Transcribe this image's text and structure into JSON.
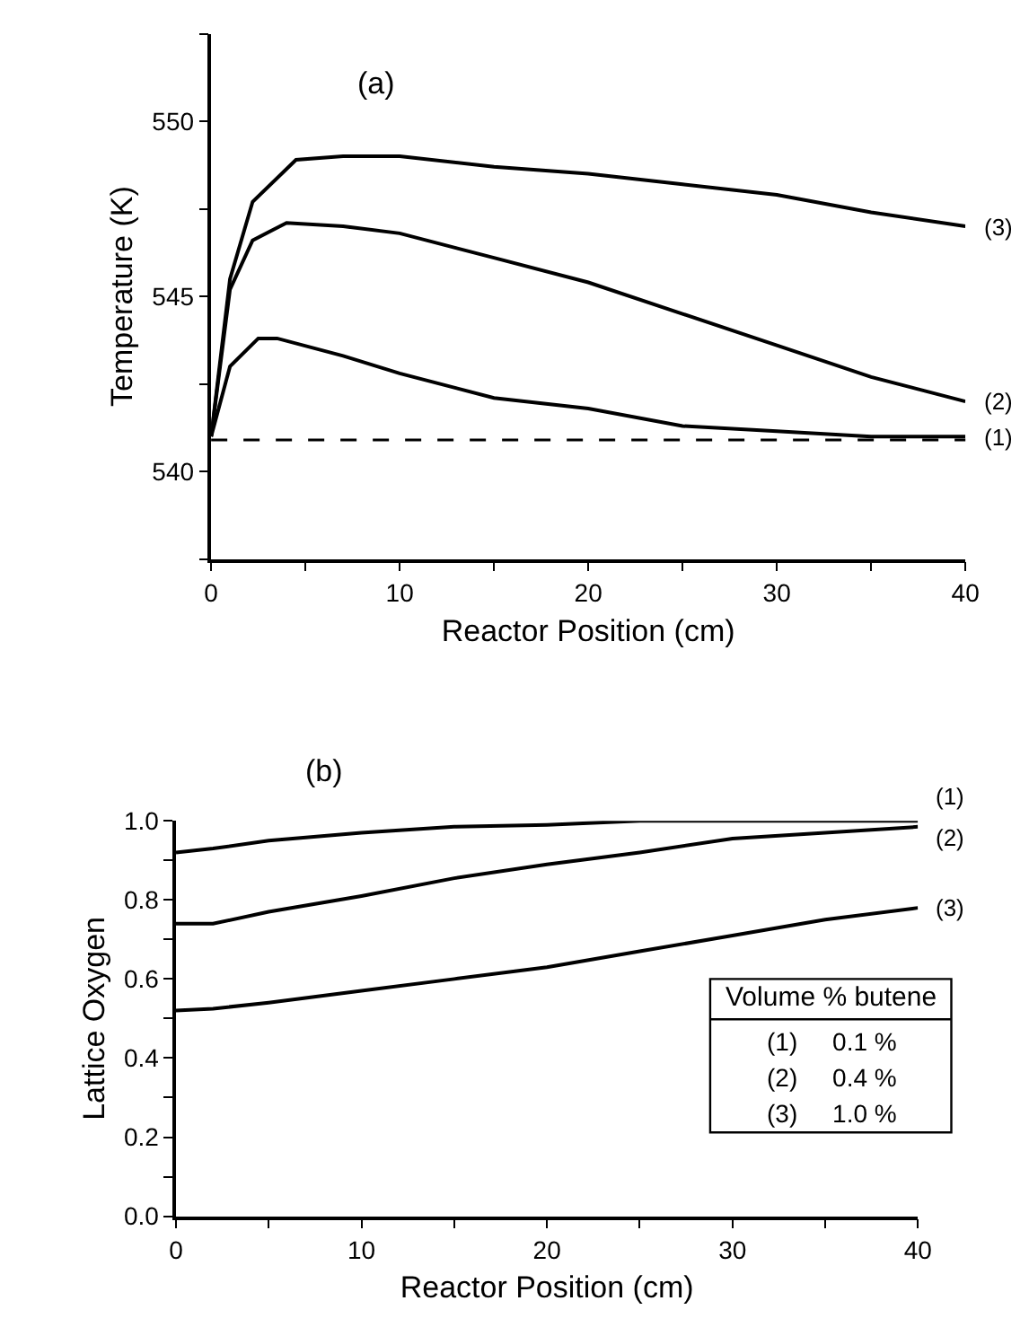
{
  "chart_data": [
    {
      "type": "line",
      "title": "(a)",
      "xlabel": "Reactor Position (cm)",
      "ylabel": "Temperature (K)",
      "xlim": [
        0,
        40
      ],
      "xticks": [
        0,
        {
          "value": 5,
          "label": null
        },
        10,
        {
          "value": 15,
          "label": null
        },
        20,
        {
          "value": 25,
          "label": null
        },
        30,
        {
          "value": 35,
          "label": null
        },
        40
      ],
      "ylim": [
        537.5,
        552.5
      ],
      "yticks": [
        {
          "value": 537.5,
          "label": null
        },
        540,
        {
          "value": 542.5,
          "label": null
        },
        545,
        {
          "value": 547.5,
          "label": null
        },
        550,
        {
          "value": 552.5,
          "label": null
        }
      ],
      "grid": false,
      "legend": false,
      "line_style": "solid",
      "ref_lines": [
        {
          "axis": "y",
          "value": 540.9,
          "color": "#000000",
          "line_style": "dashed"
        }
      ],
      "series": [
        {
          "name": "(1)",
          "color": "#000000",
          "x": [
            0,
            1,
            2.5,
            3.5,
            7,
            10,
            15,
            20,
            25,
            30,
            35,
            40
          ],
          "values": [
            541.0,
            543.0,
            543.8,
            543.8,
            543.3,
            542.8,
            542.1,
            541.8,
            541.3,
            541.15,
            541.0,
            541.0
          ]
        },
        {
          "name": "(2)",
          "color": "#000000",
          "x": [
            0,
            1,
            2.2,
            4,
            7,
            10,
            15,
            20,
            25,
            30,
            35,
            40
          ],
          "values": [
            541.0,
            545.2,
            546.6,
            547.1,
            547.0,
            546.8,
            546.1,
            545.4,
            544.5,
            543.6,
            542.7,
            542.0
          ]
        },
        {
          "name": "(3)",
          "color": "#000000",
          "x": [
            0,
            1,
            2.2,
            4.5,
            7,
            10,
            15,
            20,
            25,
            30,
            35,
            40
          ],
          "values": [
            541.0,
            545.5,
            547.7,
            548.9,
            549.0,
            549.0,
            548.7,
            548.5,
            548.2,
            547.9,
            547.4,
            547.0
          ]
        }
      ]
    },
    {
      "type": "line",
      "title": "(b)",
      "xlabel": "Reactor Position (cm)",
      "ylabel": "Lattice Oxygen",
      "xlim": [
        0,
        40
      ],
      "xticks": [
        0,
        {
          "value": 5,
          "label": null
        },
        10,
        {
          "value": 15,
          "label": null
        },
        20,
        {
          "value": 25,
          "label": null
        },
        30,
        {
          "value": 35,
          "label": null
        },
        40
      ],
      "ylim": [
        0,
        1.0
      ],
      "yticks": [
        {
          "value": 0,
          "label": "0.0"
        },
        {
          "value": 0.1,
          "label": null
        },
        0.2,
        {
          "value": 0.3,
          "label": null
        },
        0.4,
        {
          "value": 0.5,
          "label": null
        },
        0.6,
        {
          "value": 0.7,
          "label": null
        },
        0.8,
        {
          "value": 0.9,
          "label": null
        },
        {
          "value": 1.0,
          "label": "1.0"
        }
      ],
      "grid": false,
      "legend": false,
      "line_style": "solid",
      "annotations": [
        "Volume % butene",
        "(1)     0.1 %",
        "(2)     0.4 %",
        "(3)     1.0 %"
      ],
      "series": [
        {
          "name": "(1)",
          "color": "#000000",
          "x": [
            0,
            2,
            5,
            10,
            15,
            20,
            25,
            30,
            40
          ],
          "values": [
            0.92,
            0.93,
            0.95,
            0.97,
            0.985,
            0.99,
            1.0,
            1.0,
            1.0
          ]
        },
        {
          "name": "(2)",
          "color": "#000000",
          "x": [
            0,
            2,
            5,
            10,
            15,
            20,
            25,
            30,
            35,
            40
          ],
          "values": [
            0.74,
            0.74,
            0.77,
            0.81,
            0.855,
            0.89,
            0.92,
            0.955,
            0.97,
            0.985
          ]
        },
        {
          "name": "(3)",
          "color": "#000000",
          "x": [
            0,
            2,
            5,
            10,
            15,
            20,
            25,
            30,
            35,
            40
          ],
          "values": [
            0.52,
            0.525,
            0.54,
            0.57,
            0.6,
            0.63,
            0.67,
            0.71,
            0.75,
            0.78
          ]
        }
      ]
    }
  ]
}
